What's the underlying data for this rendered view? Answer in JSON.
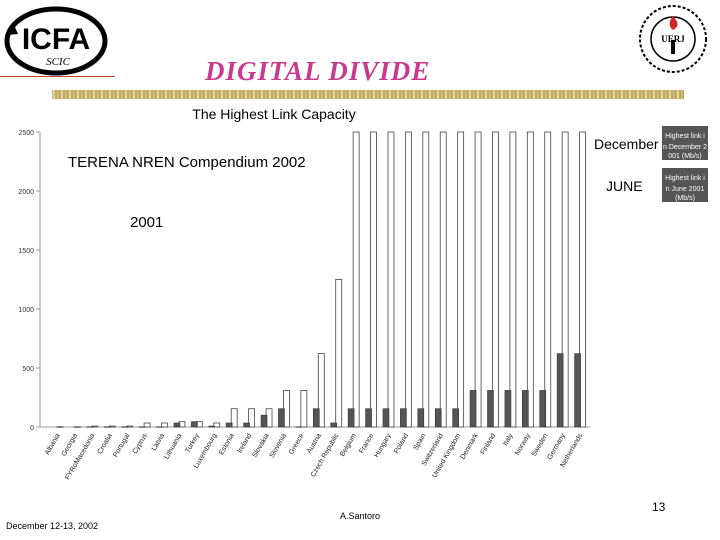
{
  "header": {
    "logo_text": "ICFA",
    "logo_sub": "SCIC",
    "title": "DIGITAL DIVIDE",
    "seal_text": "UERJ"
  },
  "chart_data": {
    "type": "bar",
    "title": "The Highest Link Capacity",
    "annotations": [
      "TERENA NREN Compendium 2002",
      "2001"
    ],
    "categories": [
      "Albania",
      "Georgia",
      "FYRoMacedonia",
      "Croatia",
      "Portugal",
      "Cyprus",
      "Latvia",
      "Lithuania",
      "Turkey",
      "Luxembourg",
      "Estonia",
      "Ireland",
      "Slovakia",
      "Slovenia",
      "Greece",
      "Austria",
      "Czech Republic",
      "Belgium",
      "France",
      "Hungary",
      "Poland",
      "Spain",
      "Switzerland",
      "United Kingdom",
      "Denmark",
      "Finland",
      "Italy",
      "Norway",
      "Sweden",
      "Germany",
      "Netherlands"
    ],
    "series": [
      {
        "name": "Highest link in June 2001 (Mb/s)",
        "legend_label": "JUNE",
        "color": "#555555",
        "values": [
          0,
          0,
          2,
          2,
          2,
          2,
          2,
          34,
          45,
          8,
          34,
          34,
          100,
          155,
          2,
          155,
          34,
          155,
          155,
          155,
          155,
          155,
          155,
          155,
          310,
          310,
          310,
          310,
          310,
          622,
          622
        ]
      },
      {
        "name": "Highest link in December 2001 (Mb/s)",
        "legend_label": "December",
        "color": "#ffffff",
        "values": [
          2,
          2,
          8,
          8,
          8,
          34,
          34,
          45,
          45,
          34,
          155,
          155,
          155,
          310,
          310,
          622,
          1250,
          2500,
          2500,
          2500,
          2500,
          2500,
          2500,
          2500,
          2500,
          2500,
          2500,
          2500,
          2500,
          2500,
          2500
        ]
      }
    ],
    "ylim": [
      0,
      2500
    ],
    "yticks": [
      0,
      500,
      1000,
      1500,
      2000,
      2500
    ],
    "legend": "top-right"
  },
  "footer": {
    "date": "December 12-13, 2002",
    "author": "A.Santoro",
    "page": "13"
  }
}
